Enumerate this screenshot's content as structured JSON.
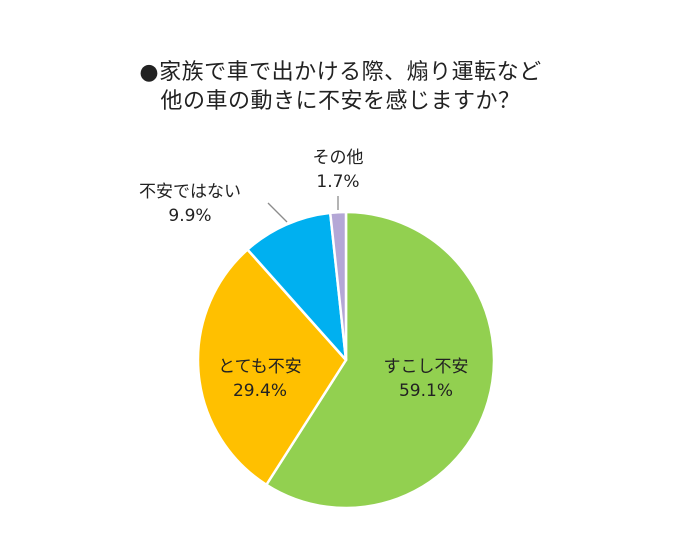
{
  "title": {
    "line1": "●家族で車で出かける際、煽り運転など",
    "line2": "他の車の動きに不安を感じますか？"
  },
  "chart_data": {
    "type": "pie",
    "title": "●家族で車で出かける際、煽り運転など他の車の動きに不安を感じますか？",
    "slices": [
      {
        "label": "すこし不安",
        "value": 59.1,
        "value_text": "59.1%",
        "color": "#92d050"
      },
      {
        "label": "とても不安",
        "value": 29.4,
        "value_text": "29.4%",
        "color": "#ffc000"
      },
      {
        "label": "不安ではない",
        "value": 9.9,
        "value_text": "9.9%",
        "color": "#00b0f0"
      },
      {
        "label": "その他",
        "value": 1.7,
        "value_text": "1.7%",
        "color": "#b4a7d6"
      }
    ],
    "start_angle": "12 o'clock",
    "direction": "clockwise",
    "leader_lines": "gray, for outside labels"
  }
}
